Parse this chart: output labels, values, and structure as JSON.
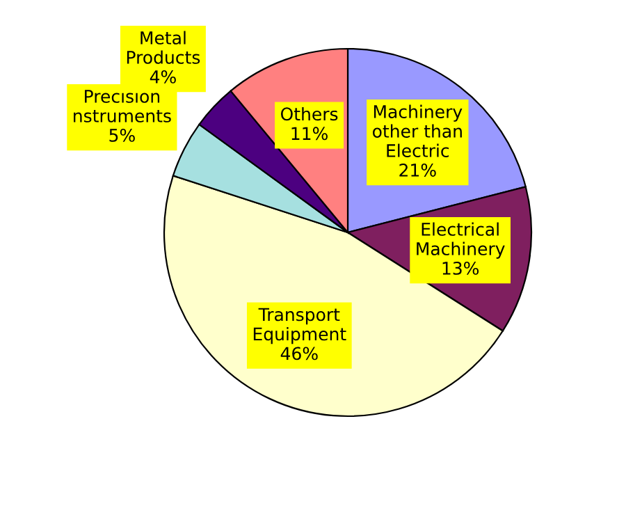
{
  "chart_data": {
    "type": "pie",
    "categories": [
      "Machinery\nother than\nElectric",
      "Electrical\nMachinery",
      "Transport\nEquipment",
      "Precision\nnstruments",
      "Metal\nProducts",
      "Others"
    ],
    "values": [
      21,
      13,
      46,
      5,
      4,
      11
    ],
    "value_labels": [
      "21%",
      "13%",
      "46%",
      "5%",
      "4%",
      "11%"
    ],
    "colors": [
      "#9999ff",
      "#7f1f5f",
      "#ffffcc",
      "#a6e0e0",
      "#4c0080",
      "#ff8080"
    ],
    "legend": false
  }
}
